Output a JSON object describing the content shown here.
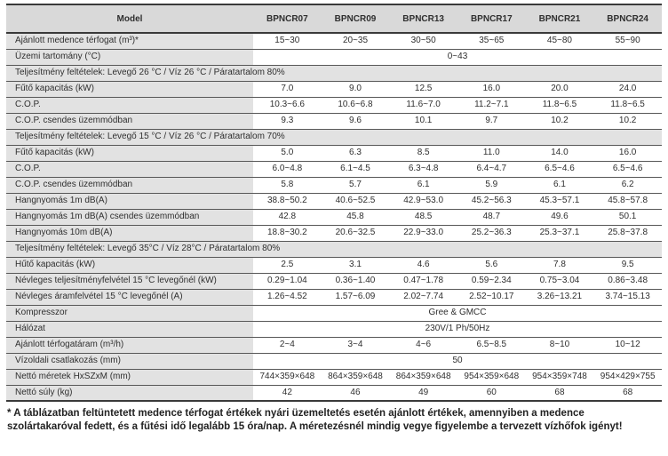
{
  "table": {
    "header": {
      "model_label": "Model",
      "columns": [
        "BPNCR07",
        "BPNCR09",
        "BPNCR13",
        "BPNCR17",
        "BPNCR21",
        "BPNCR24"
      ]
    },
    "rows": [
      {
        "type": "data",
        "label": "Ajánlott medence térfogat (m³)*",
        "values": [
          "15~30",
          "20~35",
          "30~50",
          "35~65",
          "45~80",
          "55~90"
        ]
      },
      {
        "type": "span",
        "label": "Üzemi tartomány (°C)",
        "value": "0~43"
      },
      {
        "type": "section",
        "label": "Teljesítmény feltételek: Levegő 26 °C / Víz 26 °C / Páratartalom 80%"
      },
      {
        "type": "data",
        "label": "Fűtő kapacitás (kW)",
        "values": [
          "7.0",
          "9.0",
          "12.5",
          "16.0",
          "20.0",
          "24.0"
        ]
      },
      {
        "type": "data",
        "label": "C.O.P.",
        "values": [
          "10.3~6.6",
          "10.6~6.8",
          "11.6~7.0",
          "11.2~7.1",
          "11.8~6.5",
          "11.8~6.5"
        ]
      },
      {
        "type": "data",
        "label": "C.O.P. csendes üzemmódban",
        "values": [
          "9.3",
          "9.6",
          "10.1",
          "9.7",
          "10.2",
          "10.2"
        ]
      },
      {
        "type": "section",
        "label": "Teljesítmény feltételek: Levegő 15 °C / Víz 26 °C / Páratartalom 70%"
      },
      {
        "type": "data",
        "label": "Fűtő kapacitás (kW)",
        "values": [
          "5.0",
          "6.3",
          "8.5",
          "11.0",
          "14.0",
          "16.0"
        ]
      },
      {
        "type": "data",
        "label": "C.O.P.",
        "values": [
          "6.0~4.8",
          "6.1~4.5",
          "6.3~4.8",
          "6.4~4.7",
          "6.5~4.6",
          "6.5~4.6"
        ]
      },
      {
        "type": "data",
        "label": "C.O.P. csendes üzemmódban",
        "values": [
          "5.8",
          "5.7",
          "6.1",
          "5.9",
          "6.1",
          "6.2"
        ]
      },
      {
        "type": "data",
        "label": "Hangnyomás 1m dB(A)",
        "values": [
          "38.8~50.2",
          "40.6~52.5",
          "42.9~53.0",
          "45.2~56.3",
          "45.3~57.1",
          "45.8~57.8"
        ]
      },
      {
        "type": "data",
        "label": "Hangnyomás 1m dB(A) csendes üzemmódban",
        "values": [
          "42.8",
          "45.8",
          "48.5",
          "48.7",
          "49.6",
          "50.1"
        ]
      },
      {
        "type": "data",
        "label": "Hangnyomás 10m dB(A)",
        "values": [
          "18.8~30.2",
          "20.6~32.5",
          "22.9~33.0",
          "25.2~36.3",
          "25.3~37.1",
          "25.8~37.8"
        ]
      },
      {
        "type": "section",
        "label": "Teljesítmény feltételek: Levegő 35°C / Víz 28°C / Páratartalom 80%"
      },
      {
        "type": "data",
        "label": "Hűtő kapacitás (kW)",
        "values": [
          "2.5",
          "3.1",
          "4.6",
          "5.6",
          "7.8",
          "9.5"
        ]
      },
      {
        "type": "data",
        "label": "Névleges teljesítményfelvétel 15 °C levegőnél (kW)",
        "values": [
          "0.29~1.04",
          "0.36~1.40",
          "0.47~1.78",
          "0.59~2.34",
          "0.75~3.04",
          "0.86~3.48"
        ]
      },
      {
        "type": "data",
        "label": "Névleges áramfelvétel 15 °C levegőnél (A)",
        "values": [
          "1.26~4.52",
          "1.57~6.09",
          "2.02~7.74",
          "2.52~10.17",
          "3.26~13.21",
          "3.74~15.13"
        ]
      },
      {
        "type": "span",
        "label": "Kompresszor",
        "value": "Gree & GMCC"
      },
      {
        "type": "span",
        "label": "Hálózat",
        "value": "230V/1 Ph/50Hz"
      },
      {
        "type": "data",
        "label": "Ajánlott térfogatáram (m³/h)",
        "values": [
          "2~4",
          "3~4",
          "4~6",
          "6.5~8.5",
          "8~10",
          "10~12"
        ]
      },
      {
        "type": "span",
        "label": "Vízoldali csatlakozás (mm)",
        "value": "50"
      },
      {
        "type": "data",
        "label": "Nettó méretek HxSZxM (mm)",
        "values": [
          "744×359×648",
          "864×359×648",
          "864×359×648",
          "954×359×648",
          "954×359×748",
          "954×429×755"
        ]
      },
      {
        "type": "data",
        "label": "Nettó súly (kg)",
        "values": [
          "42",
          "46",
          "49",
          "60",
          "68",
          "68"
        ]
      }
    ]
  },
  "footnote": "* A táblázatban feltüntetett medence térfogat értékek nyári üzemeltetés esetén ajánlott értékek, amennyiben a medence szolártakaróval fedett, és a fűtési idő legalább 15 óra/nap. A méretezésnél mindig vegye figyelembe a tervezett vízhőfok igényt!",
  "colors": {
    "header_bg": "#d9d9d9",
    "label_bg": "#e2e2e2",
    "row_border": "#575757",
    "outer_border": "#3a3a3a",
    "text": "#2f2f2f"
  }
}
